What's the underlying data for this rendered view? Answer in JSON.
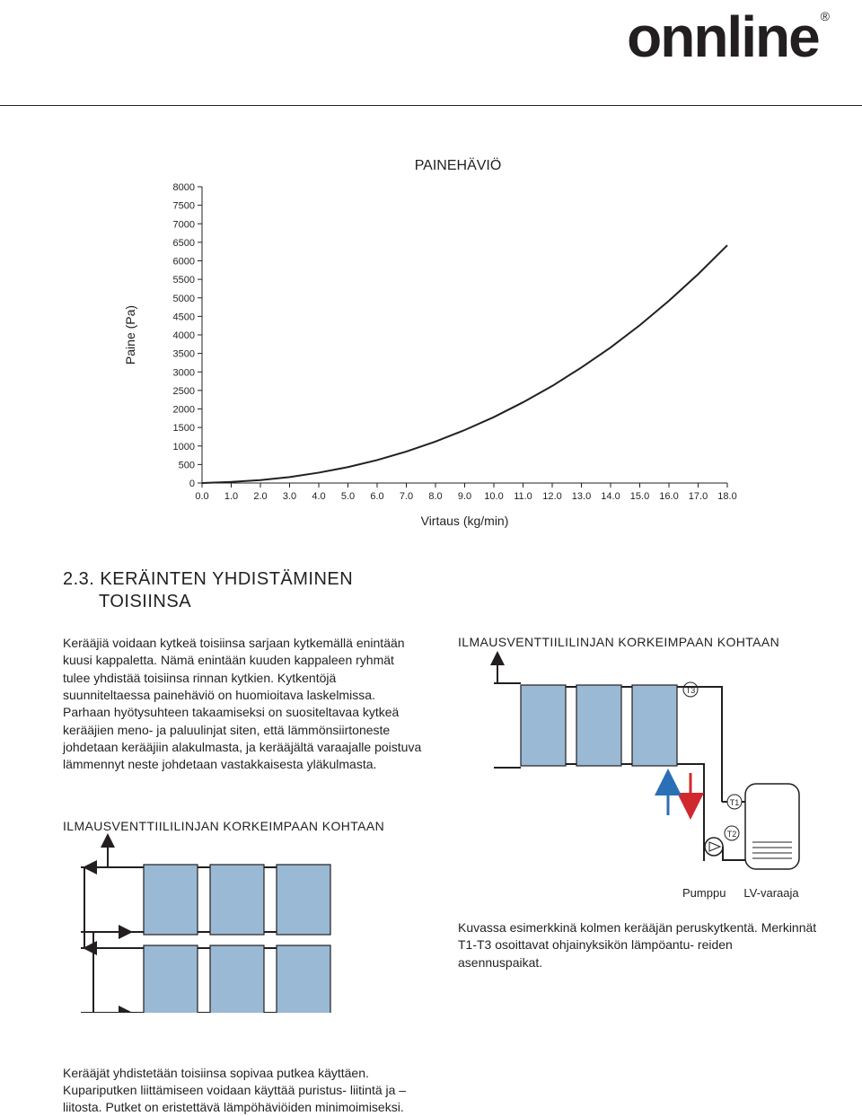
{
  "brand": {
    "name": "onnline",
    "registered": "®"
  },
  "chart": {
    "type": "line",
    "title": "PAINEHÄVIÖ",
    "title_fontsize": 16,
    "ylabel": "Paine (Pa)",
    "xlabel": "Virtaus (kg/min)",
    "label_fontsize": 14,
    "tick_fontsize": 11,
    "x_ticks": [
      0.0,
      1.0,
      2.0,
      3.0,
      4.0,
      5.0,
      6.0,
      7.0,
      8.0,
      9.0,
      10.0,
      11.0,
      12.0,
      13.0,
      14.0,
      15.0,
      16.0,
      17.0,
      18.0
    ],
    "y_ticks": [
      0,
      500,
      1000,
      1500,
      2000,
      2500,
      3000,
      3500,
      4000,
      4500,
      5000,
      5500,
      6000,
      6500,
      7000,
      7500,
      8000
    ],
    "xlim": [
      0.0,
      18.0
    ],
    "ylim": [
      0,
      8000
    ],
    "line_color": "#231f20",
    "line_width": 2,
    "axis_color": "#231f20",
    "background_color": "#ffffff",
    "data": [
      [
        0.0,
        0
      ],
      [
        1.0,
        30
      ],
      [
        2.0,
        80
      ],
      [
        3.0,
        160
      ],
      [
        4.0,
        280
      ],
      [
        5.0,
        430
      ],
      [
        6.0,
        620
      ],
      [
        7.0,
        850
      ],
      [
        8.0,
        1120
      ],
      [
        9.0,
        1430
      ],
      [
        10.0,
        1780
      ],
      [
        11.0,
        2180
      ],
      [
        12.0,
        2620
      ],
      [
        13.0,
        3120
      ],
      [
        14.0,
        3660
      ],
      [
        15.0,
        4260
      ],
      [
        16.0,
        4920
      ],
      [
        17.0,
        5640
      ],
      [
        18.0,
        6420
      ]
    ]
  },
  "section": {
    "heading_line1": "2.3. KERÄINTEN YHDISTÄMINEN",
    "heading_line2": "TOISIINSA",
    "paragraph": "Kerääjiä voidaan kytkeä toisiinsa sarjaan kytkemällä enintään kuusi kappaletta. Nämä enintään kuuden kappaleen ryhmät tulee yhdistää toisiinsa rinnan kytkien. Kytkentöjä suunniteltaessa painehäviö on huomioitava laskelmissa. Parhaan hyötysuhteen takaamiseksi on suositeltavaa kytkeä kerääjien meno- ja paluulinjat siten, että lämmönsiirtoneste johdetaan kerääjiin alakulmasta, ja kerääjältä varaajalle poistuva lämmennyt neste johdetaan vastakkaisesta yläkulmasta.",
    "sub_heading": "ILMAUSVENTTIILILINJAN KORKEIMPAAN KOHTAAN",
    "footer_paragraph": "Kerääjät yhdistetään toisiinsa sopivaa putkea käyttäen. Kupariputken liittämiseen voidaan käyttää puristus- liitintä ja –liitosta. Putket on eristettävä lämpöhäviöiden minimoimiseksi.",
    "caption": "Kuvassa esimerkkinä kolmen kerääjän peruskytkentä. Merkinnät T1-T3 osoittavat ohjainyksikön lämpöantu- reiden asennuspaikat.",
    "label_pump": "Pumppu",
    "label_tank": "LV-varaaja"
  },
  "diagram_right": {
    "type": "flowchart",
    "panel_fill": "#9ab9d4",
    "panel_stroke": "#231f20",
    "pipe_color": "#231f20",
    "arrow_red": "#d1282e",
    "arrow_blue": "#2b6fb6",
    "tank_stroke": "#231f20",
    "labels": {
      "t1": "T1",
      "t2": "T2",
      "t3": "T3"
    }
  },
  "diagram_left": {
    "type": "flowchart",
    "panel_fill": "#9ab9d4",
    "panel_stroke": "#231f20",
    "pipe_color": "#231f20"
  }
}
